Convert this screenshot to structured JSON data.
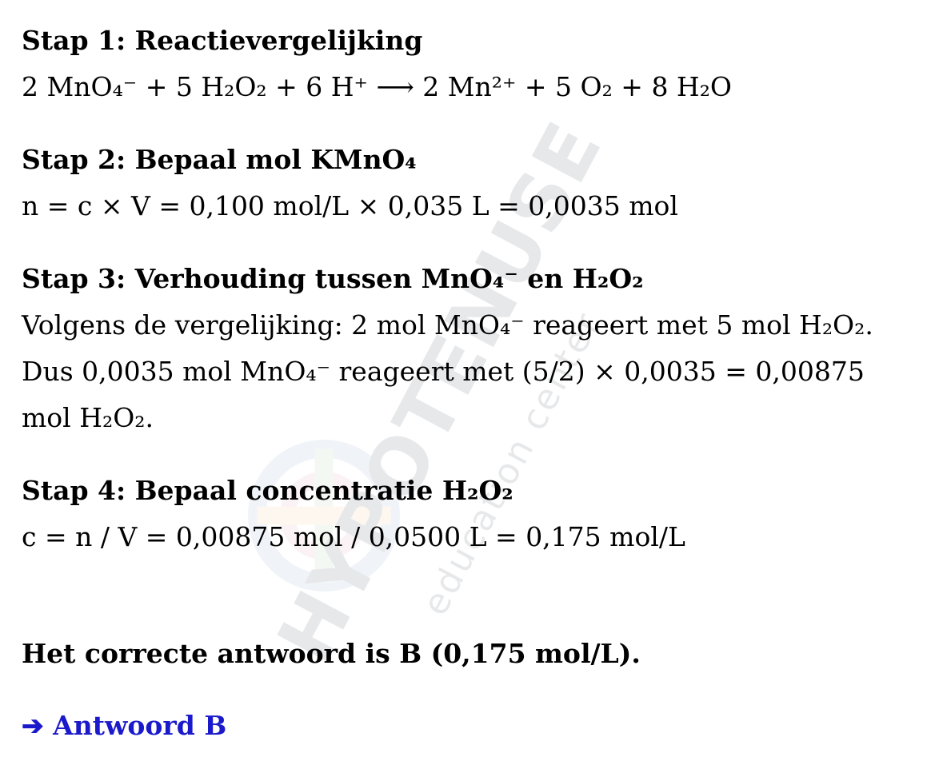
{
  "watermark": {
    "brand": "HYPOTENUSE",
    "sub": "education center"
  },
  "steps": [
    {
      "title": "Stap 1: Reactievergelijking",
      "lines": [
        "2 MnO₄⁻ + 5 H₂O₂ + 6 H⁺ ⟶ 2 Mn²⁺ + 5 O₂ + 8 H₂O"
      ]
    },
    {
      "title": "Stap 2: Bepaal mol KMnO₄",
      "lines": [
        "n = c × V = 0,100 mol/L × 0,035 L = 0,0035 mol"
      ]
    },
    {
      "title": "Stap 3: Verhouding tussen MnO₄⁻ en H₂O₂",
      "lines": [
        "Volgens de vergelijking: 2 mol MnO₄⁻ reageert met 5 mol H₂O₂.",
        "Dus 0,0035 mol MnO₄⁻ reageert met (5/2) × 0,0035 = 0,00875",
        "mol H₂O₂."
      ]
    },
    {
      "title": "Stap 4: Bepaal concentratie H₂O₂",
      "lines": [
        "c = n / V = 0,00875 mol / 0,0500 L = 0,175 mol/L"
      ]
    }
  ],
  "conclusion": "Het correcte antwoord is B (0,175 mol/L).",
  "answer": "➔ Antwoord B",
  "colors": {
    "text": "#000000",
    "answer": "#1a1acc",
    "background": "#ffffff"
  }
}
